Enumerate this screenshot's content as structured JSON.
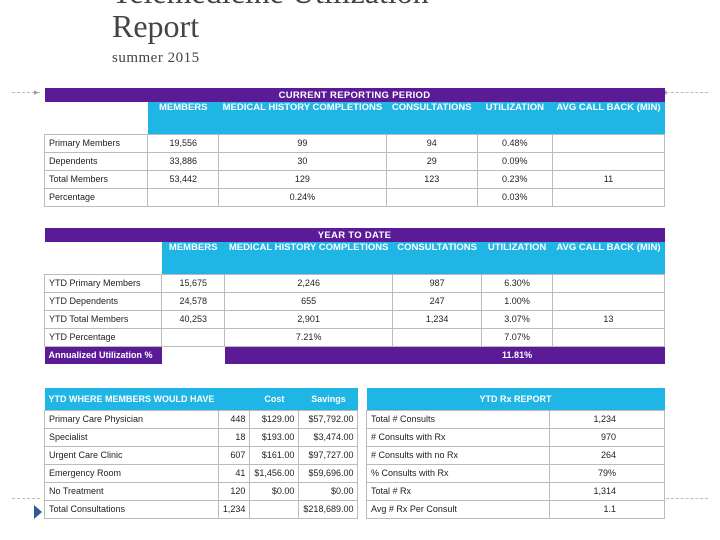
{
  "title": {
    "top_line": "Telemedicine Utilization",
    "main": "Report",
    "subtitle": "summer 2015"
  },
  "current": {
    "banner": "CURRENT REPORTING PERIOD",
    "headers": [
      "MEMBERS",
      "MEDICAL HISTORY COMPLETIONS",
      "CONSULTATIONS",
      "UTILIZATION",
      "AVG CALL BACK (MIN)"
    ],
    "rows": [
      {
        "label": "Primary Members",
        "members": "19,556",
        "mh": "99",
        "consults": "94",
        "util": "0.48%",
        "avg": ""
      },
      {
        "label": "Dependents",
        "members": "33,886",
        "mh": "30",
        "consults": "29",
        "util": "0.09%",
        "avg": ""
      },
      {
        "label": "Total Members",
        "members": "53,442",
        "mh": "129",
        "consults": "123",
        "util": "0.23%",
        "avg": "11"
      },
      {
        "label": "Percentage",
        "members": "",
        "mh": "0.24%",
        "consults": "",
        "util": "0.03%",
        "avg": ""
      }
    ]
  },
  "ytd": {
    "banner": "YEAR TO DATE",
    "headers": [
      "MEMBERS",
      "MEDICAL HISTORY COMPLETIONS",
      "CONSULTATIONS",
      "UTILIZATION",
      "AVG CALL BACK (MIN)"
    ],
    "rows": [
      {
        "label": "YTD Primary Members",
        "members": "15,675",
        "mh": "2,246",
        "consults": "987",
        "util": "6.30%",
        "avg": ""
      },
      {
        "label": "YTD Dependents",
        "members": "24,578",
        "mh": "655",
        "consults": "247",
        "util": "1.00%",
        "avg": ""
      },
      {
        "label": "YTD Total Members",
        "members": "40,253",
        "mh": "2,901",
        "consults": "1,234",
        "util": "3.07%",
        "avg": "13"
      },
      {
        "label": "YTD Percentage",
        "members": "",
        "mh": "7.21%",
        "consults": "",
        "util": "7.07%",
        "avg": ""
      }
    ],
    "annualized_label": "Annualized Utilization %",
    "annualized_value": "11.81%"
  },
  "where": {
    "headers": [
      "YTD WHERE MEMBERS WOULD HAVE",
      "",
      "Cost",
      "Savings"
    ],
    "rows": [
      {
        "label": "Primary Care Physician",
        "count": "448",
        "cost": "$129.00",
        "savings": "$57,792.00"
      },
      {
        "label": "Specialist",
        "count": "18",
        "cost": "$193.00",
        "savings": "$3,474.00"
      },
      {
        "label": "Urgent Care Clinic",
        "count": "607",
        "cost": "$161.00",
        "savings": "$97,727.00"
      },
      {
        "label": "Emergency Room",
        "count": "41",
        "cost": "$1,456.00",
        "savings": "$59,696.00"
      },
      {
        "label": "No Treatment",
        "count": "120",
        "cost": "$0.00",
        "savings": "$0.00"
      },
      {
        "label": "Total Consultations",
        "count": "1,234",
        "cost": "",
        "savings": "$218,689.00"
      }
    ]
  },
  "rx": {
    "header": "YTD Rx REPORT",
    "rows": [
      {
        "label": "Total # Consults",
        "value": "1,234"
      },
      {
        "label": "# Consults with Rx",
        "value": "970"
      },
      {
        "label": "# Consults with no Rx",
        "value": "264"
      },
      {
        "label": "% Consults with Rx",
        "value": "79%"
      },
      {
        "label": "Total # Rx",
        "value": "1,314"
      },
      {
        "label": "Avg # Rx Per Consult",
        "value": "1.1"
      }
    ]
  },
  "colors": {
    "purple": "#5b1a96",
    "cyan": "#1fb6e6"
  }
}
